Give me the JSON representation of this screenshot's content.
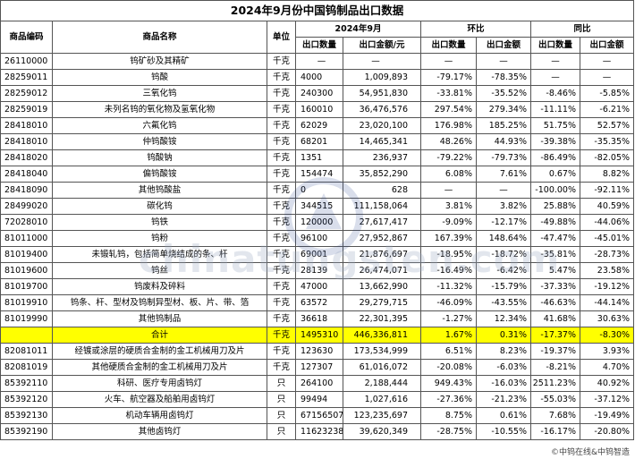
{
  "title": "2024年9月份中国钨制品出口数据",
  "headers": {
    "code": "商品编码",
    "name": "商品名称",
    "unit": "单位",
    "period": "2024年9月",
    "mom": "环比",
    "yoy": "同比",
    "qty": "出口数量",
    "amount": "出口金额/元",
    "qty_pct": "出口数量",
    "amt_pct": "出口金额"
  },
  "rows": [
    {
      "code": "26110000",
      "name": "钨矿砂及其精矿",
      "unit": "千克",
      "qty": "—",
      "amount": "—",
      "mom_qty": "—",
      "mom_amt": "—",
      "yoy_qty": "—",
      "yoy_amt": "—"
    },
    {
      "code": "28259011",
      "name": "钨酸",
      "unit": "千克",
      "qty": "4000",
      "amount": "1,009,893",
      "mom_qty": "-79.17%",
      "mom_amt": "-78.35%",
      "yoy_qty": "—",
      "yoy_amt": "—"
    },
    {
      "code": "28259012",
      "name": "三氧化钨",
      "unit": "千克",
      "qty": "240300",
      "amount": "54,951,830",
      "mom_qty": "-33.81%",
      "mom_amt": "-35.52%",
      "yoy_qty": "-8.46%",
      "yoy_amt": "-5.85%"
    },
    {
      "code": "28259019",
      "name": "未列名钨的氧化物及氢氧化物",
      "unit": "千克",
      "qty": "160010",
      "amount": "36,476,576",
      "mom_qty": "297.54%",
      "mom_amt": "279.34%",
      "yoy_qty": "-11.11%",
      "yoy_amt": "-6.21%"
    },
    {
      "code": "28418010",
      "name": "六氟化钨",
      "unit": "千克",
      "qty": "62029",
      "amount": "23,020,100",
      "mom_qty": "176.98%",
      "mom_amt": "185.25%",
      "yoy_qty": "51.75%",
      "yoy_amt": "52.57%"
    },
    {
      "code": "28418010",
      "name": "仲钨酸铵",
      "unit": "千克",
      "qty": "68201",
      "amount": "14,465,341",
      "mom_qty": "48.26%",
      "mom_amt": "44.93%",
      "yoy_qty": "-39.38%",
      "yoy_amt": "-35.35%"
    },
    {
      "code": "28418020",
      "name": "钨酸钠",
      "unit": "千克",
      "qty": "1351",
      "amount": "236,937",
      "mom_qty": "-79.22%",
      "mom_amt": "-79.73%",
      "yoy_qty": "-86.49%",
      "yoy_amt": "-82.05%"
    },
    {
      "code": "28418040",
      "name": "偏钨酸铵",
      "unit": "千克",
      "qty": "154474",
      "amount": "35,852,290",
      "mom_qty": "6.08%",
      "mom_amt": "7.61%",
      "yoy_qty": "0.67%",
      "yoy_amt": "8.82%"
    },
    {
      "code": "28418090",
      "name": "其他钨酸盐",
      "unit": "千克",
      "qty": "0",
      "amount": "628",
      "mom_qty": "—",
      "mom_amt": "—",
      "yoy_qty": "-100.00%",
      "yoy_amt": "-92.11%"
    },
    {
      "code": "28499020",
      "name": "碳化钨",
      "unit": "千克",
      "qty": "344515",
      "amount": "111,158,064",
      "mom_qty": "3.81%",
      "mom_amt": "3.82%",
      "yoy_qty": "25.88%",
      "yoy_amt": "40.59%"
    },
    {
      "code": "72028010",
      "name": "钨铁",
      "unit": "千克",
      "qty": "120000",
      "amount": "27,617,417",
      "mom_qty": "-9.09%",
      "mom_amt": "-12.17%",
      "yoy_qty": "-49.88%",
      "yoy_amt": "-44.06%"
    },
    {
      "code": "81011000",
      "name": "钨粉",
      "unit": "千克",
      "qty": "96100",
      "amount": "27,952,867",
      "mom_qty": "167.39%",
      "mom_amt": "148.64%",
      "yoy_qty": "-47.47%",
      "yoy_amt": "-45.01%"
    },
    {
      "code": "81019400",
      "name": "未锻轧钨，包括简单烧结成的条、杆",
      "unit": "千克",
      "qty": "69001",
      "amount": "21,876,697",
      "mom_qty": "-18.95%",
      "mom_amt": "-18.72%",
      "yoy_qty": "-35.81%",
      "yoy_amt": "-28.73%"
    },
    {
      "code": "81019600",
      "name": "钨丝",
      "unit": "千克",
      "qty": "28139",
      "amount": "26,474,071",
      "mom_qty": "-16.49%",
      "mom_amt": "-6.42%",
      "yoy_qty": "5.47%",
      "yoy_amt": "23.58%"
    },
    {
      "code": "81019700",
      "name": "钨废料及碎料",
      "unit": "千克",
      "qty": "47000",
      "amount": "13,662,990",
      "mom_qty": "-11.32%",
      "mom_amt": "-15.79%",
      "yoy_qty": "-37.33%",
      "yoy_amt": "-19.12%"
    },
    {
      "code": "81019910",
      "name": "钨条、杆、型材及钨制异型材、板、片、带、箔",
      "unit": "千克",
      "qty": "63572",
      "amount": "29,279,715",
      "mom_qty": "-46.09%",
      "mom_amt": "-43.55%",
      "yoy_qty": "-46.63%",
      "yoy_amt": "-44.14%"
    },
    {
      "code": "81019990",
      "name": "其他钨制品",
      "unit": "千克",
      "qty": "36618",
      "amount": "22,301,395",
      "mom_qty": "-1.27%",
      "mom_amt": "12.34%",
      "yoy_qty": "41.68%",
      "yoy_amt": "30.63%"
    },
    {
      "total": true,
      "code": "",
      "name": "合计",
      "unit": "千克",
      "qty": "1495310",
      "amount": "446,336,811",
      "mom_qty": "1.67%",
      "mom_amt": "0.31%",
      "yoy_qty": "-17.37%",
      "yoy_amt": "-8.30%"
    },
    {
      "code": "82081011",
      "name": "经镀或涂层的硬质合金制的金工机械用刀及片",
      "unit": "千克",
      "qty": "123630",
      "amount": "173,534,999",
      "mom_qty": "6.51%",
      "mom_amt": "8.23%",
      "yoy_qty": "-19.37%",
      "yoy_amt": "3.93%"
    },
    {
      "code": "82081019",
      "name": "其他硬质合金制的金工机械用刀及片",
      "unit": "千克",
      "qty": "127307",
      "amount": "61,016,072",
      "mom_qty": "-20.08%",
      "mom_amt": "-6.03%",
      "yoy_qty": "-8.21%",
      "yoy_amt": "4.70%"
    },
    {
      "code": "85392110",
      "name": "科研、医疗专用卤钨灯",
      "unit": "只",
      "qty": "264100",
      "amount": "2,188,444",
      "mom_qty": "949.43%",
      "mom_amt": "-16.03%",
      "yoy_qty": "2511.23%",
      "yoy_amt": "40.92%"
    },
    {
      "code": "85392120",
      "name": "火车、航空器及船舶用卤钨灯",
      "unit": "只",
      "qty": "99494",
      "amount": "1,027,616",
      "mom_qty": "-27.36%",
      "mom_amt": "-21.23%",
      "yoy_qty": "-55.03%",
      "yoy_amt": "-37.12%"
    },
    {
      "code": "85392130",
      "name": "机动车辆用卤钨灯",
      "unit": "只",
      "qty": "67156507",
      "amount": "123,235,697",
      "mom_qty": "8.75%",
      "mom_amt": "0.61%",
      "yoy_qty": "7.68%",
      "yoy_amt": "-19.49%"
    },
    {
      "code": "85392190",
      "name": "其他卤钨灯",
      "unit": "只",
      "qty": "11623238",
      "amount": "39,620,349",
      "mom_qty": "-28.75%",
      "mom_amt": "-10.55%",
      "yoy_qty": "-16.17%",
      "yoy_amt": "-20.80%"
    }
  ],
  "watermark_text": "chinatungsten.com",
  "credit": "©中钨在线&中钨智造",
  "colors": {
    "positive": "#e00000",
    "negative": "#00a000",
    "total_highlight": "#ffff00"
  }
}
